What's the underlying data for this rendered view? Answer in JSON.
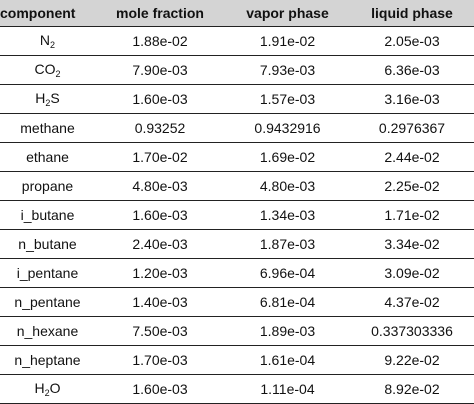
{
  "table": {
    "header": [
      "component",
      "mole fraction",
      "vapor phase",
      "liquid phase"
    ],
    "rows": [
      [
        [
          "N",
          "2"
        ],
        "1.88e-02",
        "1.91e-02",
        "2.05e-03"
      ],
      [
        [
          "CO",
          "2"
        ],
        "7.90e-03",
        "7.93e-03",
        "6.36e-03"
      ],
      [
        [
          "H",
          "2",
          "S"
        ],
        "1.60e-03",
        "1.57e-03",
        "3.16e-03"
      ],
      [
        [
          "methane"
        ],
        "0.93252",
        "0.9432916",
        "0.2976367"
      ],
      [
        [
          "ethane"
        ],
        "1.70e-02",
        "1.69e-02",
        "2.44e-02"
      ],
      [
        [
          "propane"
        ],
        "4.80e-03",
        "4.80e-03",
        "2.25e-02"
      ],
      [
        [
          "i_butane"
        ],
        "1.60e-03",
        "1.34e-03",
        "1.71e-02"
      ],
      [
        [
          "n_butane"
        ],
        "2.40e-03",
        "1.87e-03",
        "3.34e-02"
      ],
      [
        [
          "i_pentane"
        ],
        "1.20e-03",
        "6.96e-04",
        "3.09e-02"
      ],
      [
        [
          "n_pentane"
        ],
        "1.40e-03",
        "6.81e-04",
        "4.37e-02"
      ],
      [
        [
          "n_hexane"
        ],
        "7.50e-03",
        "1.89e-03",
        "0.337303336"
      ],
      [
        [
          "n_heptane"
        ],
        "1.70e-03",
        "1.61e-04",
        "9.22e-02"
      ],
      [
        [
          "H",
          "2",
          "O"
        ],
        "1.60e-03",
        "1.11e-04",
        "8.92e-02"
      ]
    ]
  }
}
